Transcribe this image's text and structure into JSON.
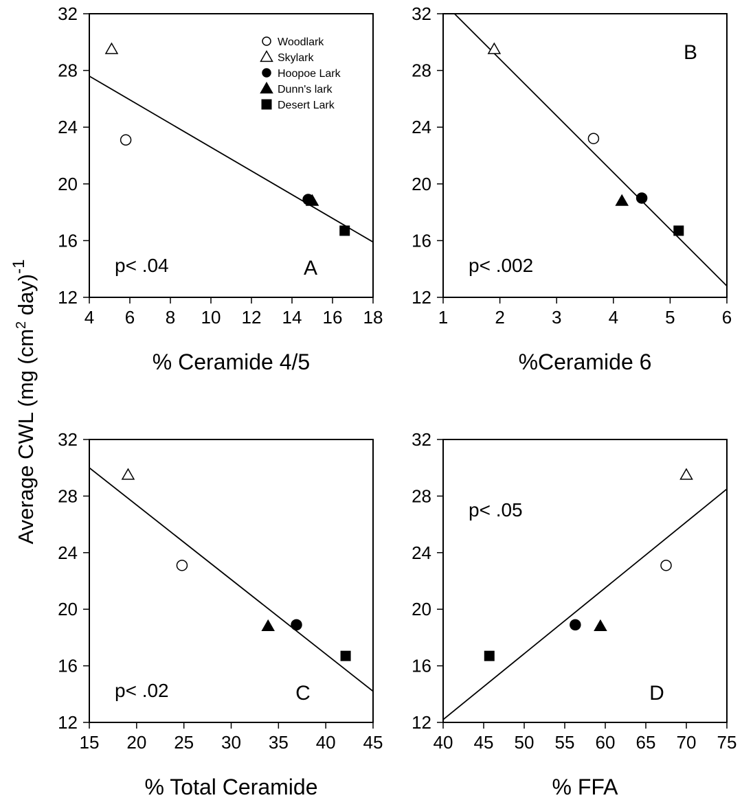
{
  "figure": {
    "ylabel": "Average CWL (mg (cm",
    "ylabel_sup": "2",
    "ylabel_tail": " day)",
    "ylabel_exp": "-1"
  },
  "legend": {
    "entries": [
      {
        "name": "Woodlark",
        "marker": "circle-open"
      },
      {
        "name": "Skylark",
        "marker": "triangle-open"
      },
      {
        "name": "Hoopoe Lark",
        "marker": "circle-filled"
      },
      {
        "name": "Dunn's lark",
        "marker": "triangle-filled"
      },
      {
        "name": "Desert Lark",
        "marker": "square-filled"
      }
    ]
  },
  "chart_data": [
    {
      "type": "scatter",
      "panel_letter": "A",
      "xlabel": "% Ceramide 4/5",
      "ylabel": "Average CWL (mg (cm2 day)-1",
      "xlim": [
        4,
        18
      ],
      "ylim": [
        12,
        32
      ],
      "xticks": [
        4,
        6,
        8,
        10,
        12,
        14,
        16,
        18
      ],
      "yticks": [
        12,
        16,
        20,
        24,
        28,
        32
      ],
      "pvalue": "p< .04",
      "pvalue_pos": "bottom-left",
      "letter_pos": "bottom-right",
      "legend": "top-right",
      "series": [
        {
          "name": "Woodlark",
          "marker": "circle-open",
          "x": 5.8,
          "y": 23.1
        },
        {
          "name": "Skylark",
          "marker": "triangle-open",
          "x": 5.1,
          "y": 29.5
        },
        {
          "name": "Hoopoe Lark",
          "marker": "circle-filled",
          "x": 14.8,
          "y": 18.9
        },
        {
          "name": "Dunn's lark",
          "marker": "triangle-filled",
          "x": 15.0,
          "y": 18.8
        },
        {
          "name": "Desert Lark",
          "marker": "square-filled",
          "x": 16.6,
          "y": 16.7
        }
      ],
      "fit": {
        "x": [
          4,
          18
        ],
        "y": [
          27.6,
          15.9
        ]
      }
    },
    {
      "type": "scatter",
      "panel_letter": "B",
      "xlabel": "%Ceramide 6",
      "xlim": [
        1,
        6
      ],
      "ylim": [
        12,
        32
      ],
      "xticks": [
        1,
        2,
        3,
        4,
        5,
        6
      ],
      "yticks": [
        12,
        16,
        20,
        24,
        28,
        32
      ],
      "pvalue": "p< .002",
      "pvalue_pos": "bottom-left",
      "letter_pos": "top-right",
      "series": [
        {
          "name": "Woodlark",
          "marker": "circle-open",
          "x": 3.65,
          "y": 23.2
        },
        {
          "name": "Skylark",
          "marker": "triangle-open",
          "x": 1.9,
          "y": 29.5
        },
        {
          "name": "Hoopoe Lark",
          "marker": "circle-filled",
          "x": 4.5,
          "y": 19.0
        },
        {
          "name": "Dunn's lark",
          "marker": "triangle-filled",
          "x": 4.15,
          "y": 18.8
        },
        {
          "name": "Desert Lark",
          "marker": "square-filled",
          "x": 5.15,
          "y": 16.7
        }
      ],
      "fit": {
        "x": [
          1.2,
          6
        ],
        "y": [
          32,
          12.8
        ]
      }
    },
    {
      "type": "scatter",
      "panel_letter": "C",
      "xlabel": "% Total Ceramide",
      "xlim": [
        15,
        45
      ],
      "ylim": [
        12,
        32
      ],
      "xticks": [
        15,
        20,
        25,
        30,
        35,
        40,
        45
      ],
      "yticks": [
        12,
        16,
        20,
        24,
        28,
        32
      ],
      "pvalue": "p< .02",
      "pvalue_pos": "bottom-left",
      "letter_pos": "bottom-right",
      "series": [
        {
          "name": "Woodlark",
          "marker": "circle-open",
          "x": 24.8,
          "y": 23.1
        },
        {
          "name": "Skylark",
          "marker": "triangle-open",
          "x": 19.1,
          "y": 29.5
        },
        {
          "name": "Hoopoe Lark",
          "marker": "circle-filled",
          "x": 36.9,
          "y": 18.9
        },
        {
          "name": "Dunn's lark",
          "marker": "triangle-filled",
          "x": 33.9,
          "y": 18.8
        },
        {
          "name": "Desert Lark",
          "marker": "square-filled",
          "x": 42.1,
          "y": 16.7
        }
      ],
      "fit": {
        "x": [
          15,
          45
        ],
        "y": [
          30.0,
          14.2
        ]
      }
    },
    {
      "type": "scatter",
      "panel_letter": "D",
      "xlabel": "% FFA",
      "xlim": [
        40,
        75
      ],
      "ylim": [
        12,
        32
      ],
      "xticks": [
        40,
        45,
        50,
        55,
        60,
        65,
        70,
        75
      ],
      "yticks": [
        12,
        16,
        20,
        24,
        28,
        32
      ],
      "pvalue": "p< .05",
      "pvalue_pos": "top-left",
      "letter_pos": "bottom-right",
      "series": [
        {
          "name": "Woodlark",
          "marker": "circle-open",
          "x": 67.5,
          "y": 23.1
        },
        {
          "name": "Skylark",
          "marker": "triangle-open",
          "x": 70.0,
          "y": 29.5
        },
        {
          "name": "Hoopoe Lark",
          "marker": "circle-filled",
          "x": 56.3,
          "y": 18.9
        },
        {
          "name": "Dunn's lark",
          "marker": "triangle-filled",
          "x": 59.4,
          "y": 18.8
        },
        {
          "name": "Desert Lark",
          "marker": "square-filled",
          "x": 45.7,
          "y": 16.7
        }
      ],
      "fit": {
        "x": [
          40,
          75
        ],
        "y": [
          12.2,
          28.5
        ]
      }
    }
  ]
}
